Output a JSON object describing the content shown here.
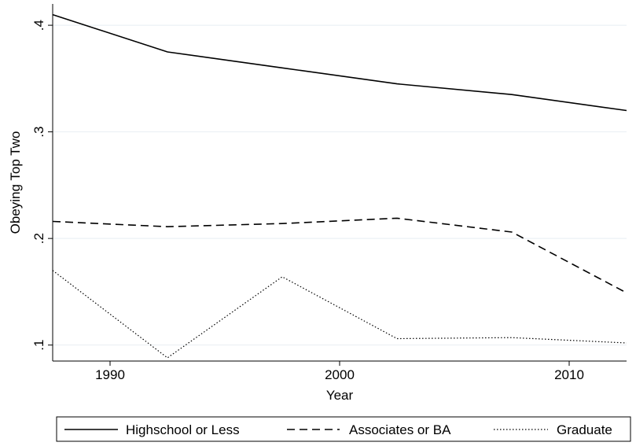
{
  "chart_data": {
    "type": "line",
    "xlabel": "Year",
    "ylabel": "Obeying Top Two",
    "xlim": [
      1987.5,
      2012.5
    ],
    "ylim": [
      0.085,
      0.42
    ],
    "x_ticks": [
      1990,
      2000,
      2010
    ],
    "x_tick_labels": [
      "1990",
      "2000",
      "2010"
    ],
    "y_ticks": [
      0.1,
      0.2,
      0.3,
      0.4
    ],
    "y_tick_labels": [
      ".1",
      ".2",
      ".3",
      ".4"
    ],
    "grid": true,
    "legend_position": "bottom",
    "x": [
      1987.5,
      1992.5,
      1997.5,
      2002.5,
      2007.5,
      2012.5
    ],
    "series": [
      {
        "name": "Highschool or Less",
        "style": "solid",
        "values": [
          0.41,
          0.375,
          0.36,
          0.345,
          0.335,
          0.32
        ]
      },
      {
        "name": "Associates or BA",
        "style": "dashed",
        "values": [
          0.216,
          0.211,
          0.214,
          0.219,
          0.206,
          0.149
        ]
      },
      {
        "name": "Graduate",
        "style": "dotted",
        "values": [
          0.17,
          0.088,
          0.164,
          0.106,
          0.107,
          0.102
        ]
      }
    ]
  }
}
